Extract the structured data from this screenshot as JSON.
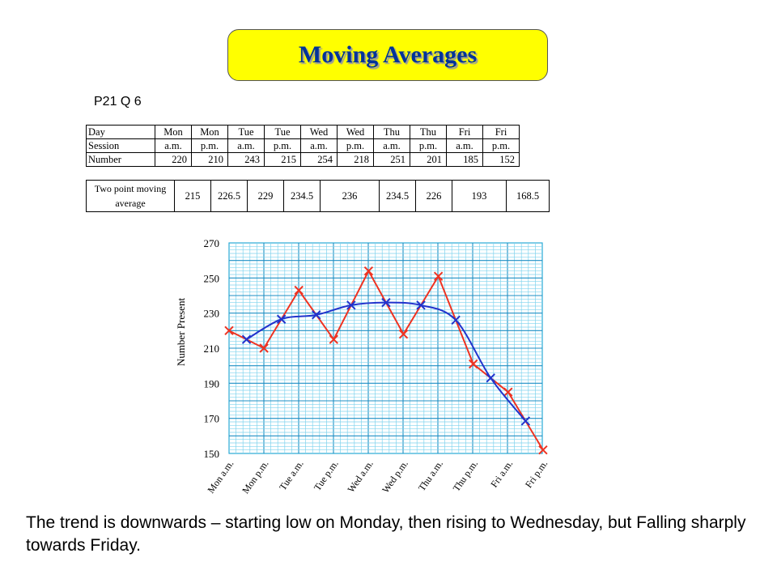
{
  "title": "Moving Averages",
  "question_ref": "P21 Q 6",
  "table": {
    "header_labels": [
      "Day",
      "Session",
      "Number"
    ],
    "days": [
      "Mon",
      "Mon",
      "Tue",
      "Tue",
      "Wed",
      "Wed",
      "Thu",
      "Thu",
      "Fri",
      "Fri"
    ],
    "sessions": [
      "a.m.",
      "p.m.",
      "a.m.",
      "p.m.",
      "a.m.",
      "p.m.",
      "a.m.",
      "p.m.",
      "a.m.",
      "p.m."
    ],
    "numbers": [
      "220",
      "210",
      "243",
      "215",
      "254",
      "218",
      "251",
      "201",
      "185",
      "152"
    ]
  },
  "moving_average_row": {
    "label": "Two point moving average",
    "values": [
      "215",
      "226.5",
      "229",
      "234.5",
      "236",
      "234.5",
      "226",
      "193",
      "168.5"
    ]
  },
  "chart_data": {
    "type": "line",
    "title": "",
    "xlabel": "",
    "ylabel": "Number Present",
    "ylim": [
      150,
      270
    ],
    "yticks": [
      150,
      170,
      190,
      210,
      230,
      250,
      270
    ],
    "categories": [
      "Mon a.m.",
      "Mon p.m.",
      "Tue a.m.",
      "Tue p.m.",
      "Wed a.m.",
      "Wed p.m.",
      "Thu a.m.",
      "Thu p.m.",
      "Fri a.m.",
      "Fri p.m."
    ],
    "grid": true,
    "series": [
      {
        "color": "#ee3322",
        "marker": "x",
        "x": [
          0,
          1,
          2,
          3,
          4,
          5,
          6,
          7,
          8,
          9
        ],
        "values": [
          220,
          210,
          243,
          215,
          254,
          218,
          251,
          201,
          185,
          152
        ]
      },
      {
        "color": "#2233cc",
        "marker": "x",
        "smooth": true,
        "x": [
          0.5,
          1.5,
          2.5,
          3.5,
          4.5,
          5.5,
          6.5,
          7.5,
          8.5
        ],
        "values": [
          215,
          226.5,
          229,
          234.5,
          236,
          234.5,
          226,
          193,
          168.5
        ]
      }
    ]
  },
  "trend_text": "The trend is downwards – starting low on Monday, then rising to Wednesday, but Falling sharply towards Friday."
}
